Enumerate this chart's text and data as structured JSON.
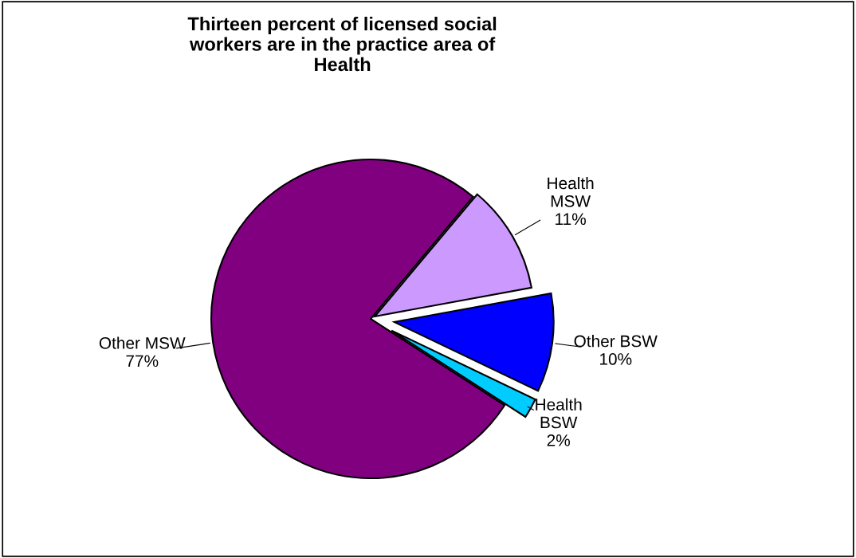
{
  "chart_data": {
    "type": "pie",
    "title": "Thirteen percent of licensed social workers are in the practice area of Health",
    "categories": [
      "Health\nMSW",
      "Other BSW",
      "Health\nBSW",
      "Other MSW"
    ],
    "values": [
      11,
      10,
      2,
      77
    ],
    "colors": [
      "#cc99ff",
      "#0000ff",
      "#00ccff",
      "#800080"
    ],
    "value_labels": [
      "11%",
      "10%",
      "2%",
      "77%"
    ]
  }
}
